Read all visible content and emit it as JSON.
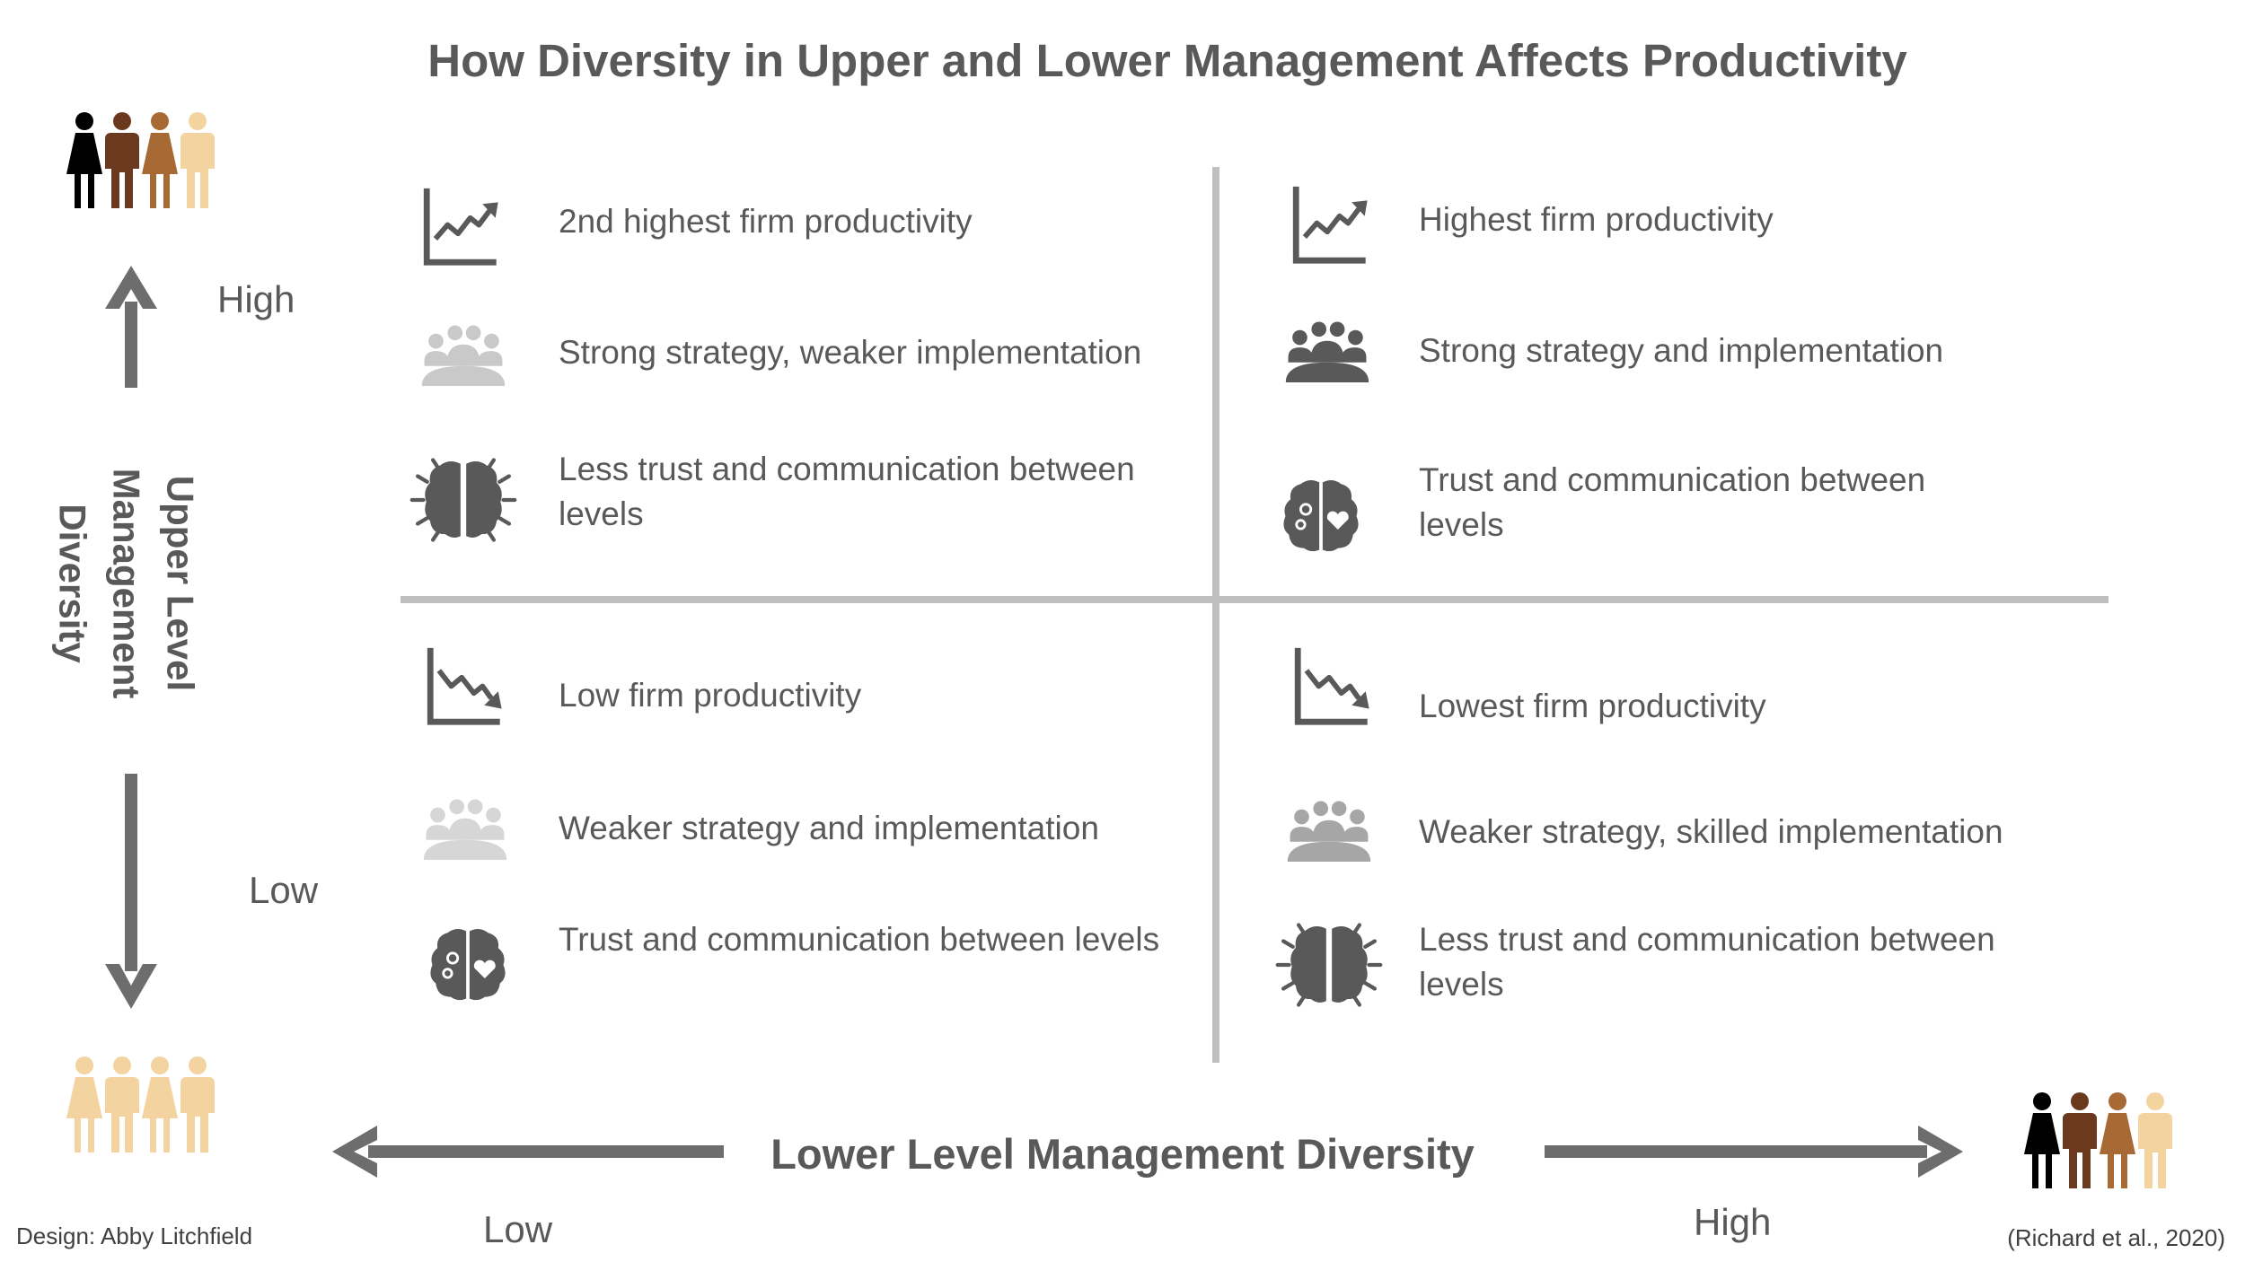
{
  "title": "How Diversity in Upper and Lower Management Affects Productivity",
  "y_axis": {
    "label_line1": "Upper Level",
    "label_line2": "Management",
    "label_line3": "Diversity",
    "high": "High",
    "low": "Low"
  },
  "x_axis": {
    "label": "Lower Level Management Diversity",
    "low": "Low",
    "high": "High"
  },
  "quadrants": {
    "top_left": {
      "productivity": "2nd highest firm productivity",
      "strategy": "Strong strategy, weaker implementation",
      "trust": "Less trust and communication between levels"
    },
    "top_right": {
      "productivity": "Highest firm productivity",
      "strategy": "Strong strategy and implementation",
      "trust": "Trust and communication between levels"
    },
    "bottom_left": {
      "productivity": "Low firm productivity",
      "strategy": "Weaker strategy and implementation",
      "trust": "Trust and communication between levels"
    },
    "bottom_right": {
      "productivity": "Lowest firm productivity",
      "strategy": "Weaker strategy, skilled implementation",
      "trust": "Less trust and communication between levels"
    }
  },
  "footer": {
    "design_credit": "Design: Abby Litchfield",
    "citation": "(Richard et al., 2020)"
  },
  "colors": {
    "text": "#595959",
    "arrow": "#6d6d6d",
    "divider": "#bfbfbf",
    "icon_dark": "#595959",
    "icon_mid": "#a6a6a6",
    "icon_light": "#c9c9c9",
    "people_light": "#f3d3a0"
  },
  "icons": {
    "growth": "chart-trending-up-icon",
    "decline": "chart-trending-down-icon",
    "meeting": "team-meeting-icon",
    "brain_divided": "brain-divided-icon",
    "brain_connected": "brain-gears-heart-icon",
    "people_diverse": "diverse-people-group-icon",
    "people_uniform": "uniform-people-group-icon"
  }
}
